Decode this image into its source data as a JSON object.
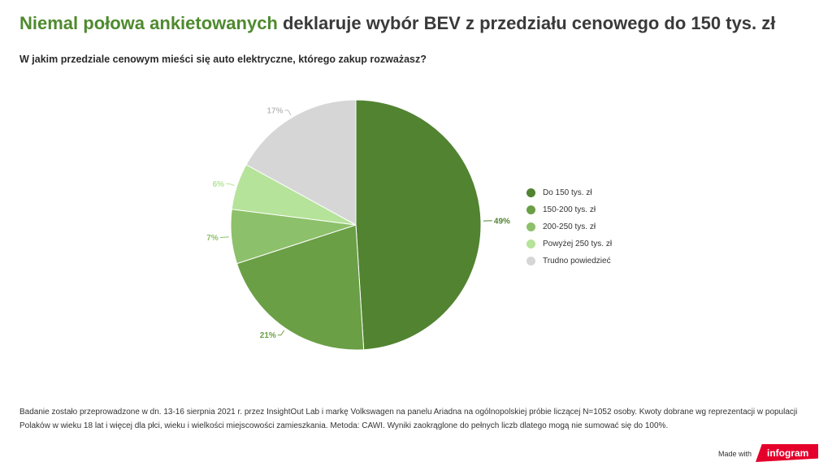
{
  "header": {
    "title_highlight": "Niemal połowa ankietowanych",
    "title_rest": " deklaruje wybór BEV z przedziału cenowego do 150 tys. zł",
    "subtitle": "W jakim przedziale cenowym mieści się auto elektryczne, którego zakup rozważasz?"
  },
  "chart_data": {
    "type": "pie",
    "categories": [
      "Do 150 tys. zł",
      "150-200 tys. zł",
      "200-250 tys. zł",
      "Powyżej 250 tys. zł",
      "Trudno powiedzieć"
    ],
    "values": [
      49,
      21,
      7,
      6,
      17
    ],
    "labels": [
      "49%",
      "21%",
      "7%",
      "6%",
      "17%"
    ],
    "colors": [
      "#518331",
      "#6a9f45",
      "#8dc06a",
      "#b5e39a",
      "#d6d6d6"
    ],
    "legend_position": "right"
  },
  "footnote": "Badanie zostało przeprowadzone w dn. 13-16 sierpnia 2021 r. przez InsightOut Lab i markę Volkswagen na panelu Ariadna na ogólnopolskiej próbie liczącej N=1052 osoby. Kwoty dobrane wg reprezentacji w populacji Polaków w wieku 18 lat i więcej dla płci, wieku i wielkości miejscowości zamieszkania. Metoda: CAWI. Wyniki zaokrąglone do pełnych liczb dlatego mogą nie sumować się do 100%.",
  "branding": {
    "made_with": "Made with",
    "brand": "infogram"
  }
}
